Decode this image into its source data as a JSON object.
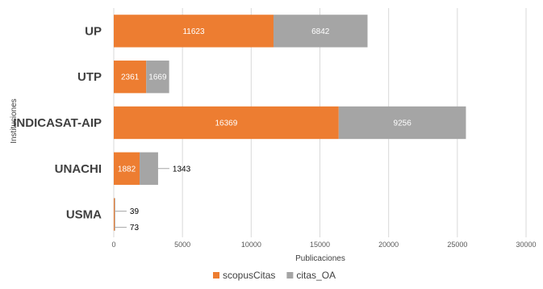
{
  "chart_data": {
    "type": "bar",
    "orientation": "horizontal",
    "stacked": true,
    "categories": [
      "UP",
      "UTP",
      "INDICASAT-AIP",
      "UNACHI",
      "USMA"
    ],
    "series": [
      {
        "name": "scopusCitas",
        "color": "#ED7D31",
        "values": [
          11623,
          2361,
          16369,
          1882,
          73
        ]
      },
      {
        "name": "citas_OA",
        "color": "#A5A5A5",
        "values": [
          6842,
          1669,
          9256,
          1343,
          39
        ]
      }
    ],
    "xlabel": "Publicaciones",
    "ylabel": "Instituciones",
    "xlim": [
      0,
      30000
    ],
    "xticks": [
      0,
      5000,
      10000,
      15000,
      20000,
      25000,
      30000
    ],
    "grid": true,
    "legend": "bottom"
  }
}
